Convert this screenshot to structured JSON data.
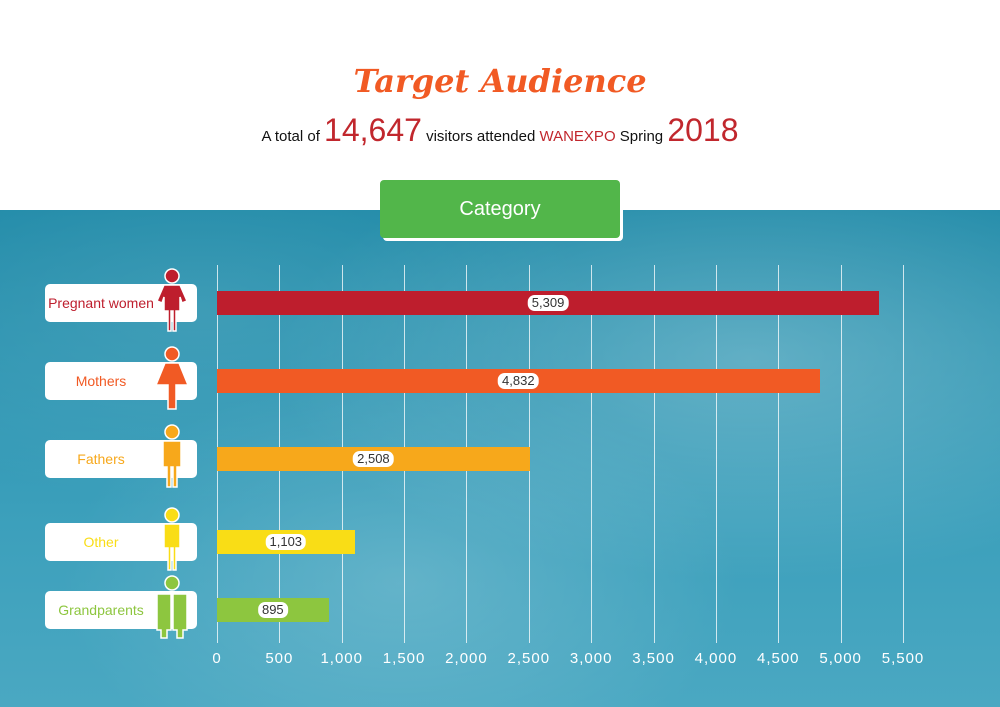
{
  "header": {
    "title": "Target Audience",
    "sub_pre": "A total of",
    "total": "14,647",
    "sub_mid": "visitors attended",
    "brand": "WANEXPO",
    "sub_season": "Spring",
    "year": "2018"
  },
  "category_button": "Category",
  "chart_data": {
    "type": "bar",
    "orientation": "horizontal",
    "title": "Target Audience",
    "xlim": [
      0,
      5500
    ],
    "ticks": [
      "0",
      "500",
      "1,000",
      "1,500",
      "2,000",
      "2,500",
      "3,000",
      "3,500",
      "4,000",
      "4,500",
      "5,000",
      "5,500"
    ],
    "categories": [
      "Pregnant women",
      "Mothers",
      "Fathers",
      "Other",
      "Grandparents"
    ],
    "values": [
      5309,
      4832,
      2508,
      1103,
      895
    ],
    "value_labels": [
      "5,309",
      "4,832",
      "2,508",
      "1,103",
      "895"
    ],
    "colors": [
      "#be1e2d",
      "#f15a24",
      "#f7a81b",
      "#f9dd16",
      "#8dc63f"
    ],
    "grid": true
  }
}
